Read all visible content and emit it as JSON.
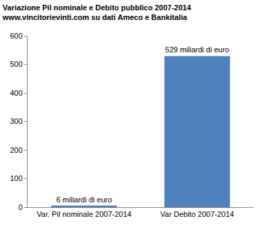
{
  "chart_data": {
    "type": "bar",
    "title": "Variazione Pil nominale e Debito pubblico 2007-2014",
    "subtitle": "www.vincitorievinti.com su dati Ameco e Bankitalia",
    "categories": [
      "Var. Pil nominale 2007-2014",
      "Var Debito 2007-2014"
    ],
    "values": [
      6,
      529
    ],
    "value_labels": [
      "6 miliardi di euro",
      "529 miliardi di euro"
    ],
    "data_labels": true,
    "color": "#4f81bd",
    "ylim": [
      0,
      600
    ],
    "yticks": [
      0,
      100,
      200,
      300,
      400,
      500,
      600
    ],
    "grid": false
  }
}
